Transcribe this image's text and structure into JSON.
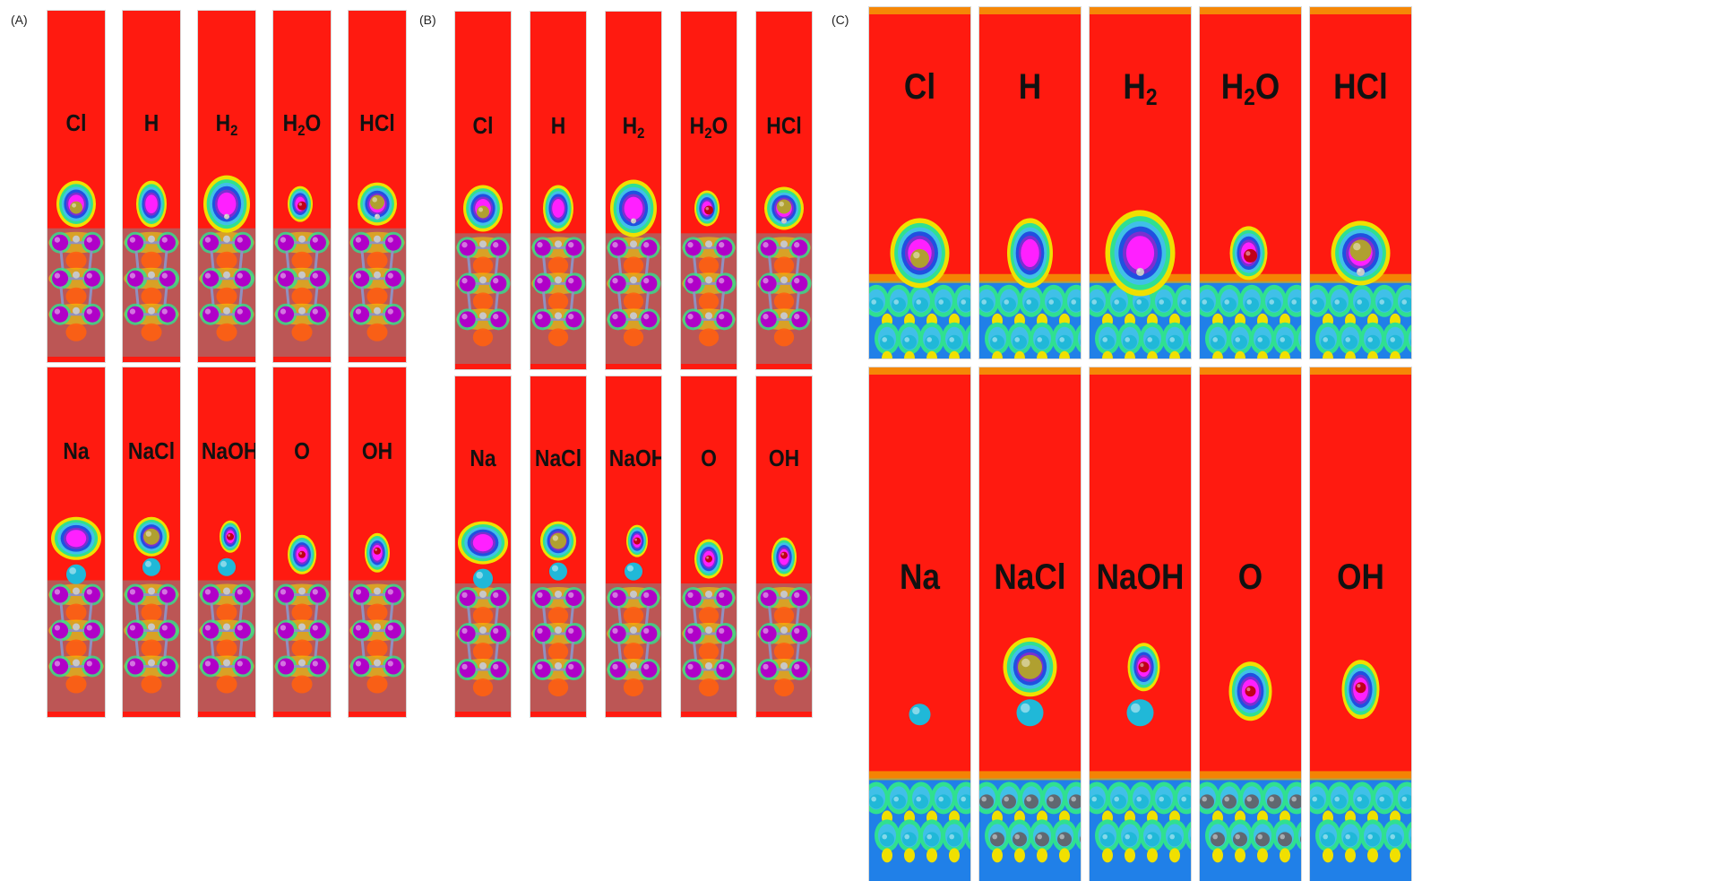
{
  "sections": [
    {
      "id": "A",
      "label": "(A)",
      "rows": [
        {
          "panels": [
            {
              "name": "Cl",
              "text": "Cl",
              "sub": ""
            },
            {
              "name": "H",
              "text": "H",
              "sub": ""
            },
            {
              "name": "H2",
              "text": "H",
              "sub": "2"
            },
            {
              "name": "H2O",
              "text": "H",
              "sub": "2",
              "tail": "O"
            },
            {
              "name": "HCl",
              "text": "HCl",
              "sub": ""
            }
          ]
        },
        {
          "panels": [
            {
              "name": "Na",
              "text": "Na",
              "sub": ""
            },
            {
              "name": "NaCl",
              "text": "NaCl",
              "sub": ""
            },
            {
              "name": "NaOH",
              "text": "NaOH",
              "sub": ""
            },
            {
              "name": "O",
              "text": "O",
              "sub": ""
            },
            {
              "name": "OH",
              "text": "OH",
              "sub": ""
            }
          ]
        }
      ]
    },
    {
      "id": "B",
      "label": "(B)",
      "rows": [
        {
          "panels": [
            {
              "name": "Cl",
              "text": "Cl",
              "sub": ""
            },
            {
              "name": "H",
              "text": "H",
              "sub": ""
            },
            {
              "name": "H2",
              "text": "H",
              "sub": "2"
            },
            {
              "name": "H2O",
              "text": "H",
              "sub": "2",
              "tail": "O"
            },
            {
              "name": "HCl",
              "text": "HCl",
              "sub": ""
            }
          ]
        },
        {
          "panels": [
            {
              "name": "Na",
              "text": "Na",
              "sub": ""
            },
            {
              "name": "NaCl",
              "text": "NaCl",
              "sub": ""
            },
            {
              "name": "NaOH",
              "text": "NaOH",
              "sub": ""
            },
            {
              "name": "O",
              "text": "O",
              "sub": ""
            },
            {
              "name": "OH",
              "text": "OH",
              "sub": ""
            }
          ]
        }
      ]
    },
    {
      "id": "C",
      "label": "(C)",
      "rows": [
        {
          "panels": [
            {
              "name": "Cl",
              "text": "Cl",
              "sub": ""
            },
            {
              "name": "H",
              "text": "H",
              "sub": ""
            },
            {
              "name": "H2",
              "text": "H",
              "sub": "2"
            },
            {
              "name": "H2O",
              "text": "H",
              "sub": "2",
              "tail": "O"
            },
            {
              "name": "HCl",
              "text": "HCl",
              "sub": ""
            }
          ]
        },
        {
          "panels": [
            {
              "name": "Na",
              "text": "Na",
              "sub": ""
            },
            {
              "name": "NaCl",
              "text": "NaCl",
              "sub": ""
            },
            {
              "name": "NaOH",
              "text": "NaOH",
              "sub": ""
            },
            {
              "name": "O",
              "text": "O",
              "sub": ""
            },
            {
              "name": "OH",
              "text": "OH",
              "sub": ""
            }
          ]
        }
      ]
    }
  ],
  "colors": {
    "background_field": "#ff1a10",
    "atom_substrate": "#b000c8",
    "atom_sodium": "#20b8d8",
    "atom_chlorine": "#b0a030",
    "atom_oxygen": "#c00018",
    "atom_hydrogen": "#c8c8c8",
    "contour_ring_outer": "#f0e000",
    "contour_ring_mid": "#30e090",
    "contour_ring_inner": "#2050e0",
    "contour_core": "#ff20ff"
  }
}
